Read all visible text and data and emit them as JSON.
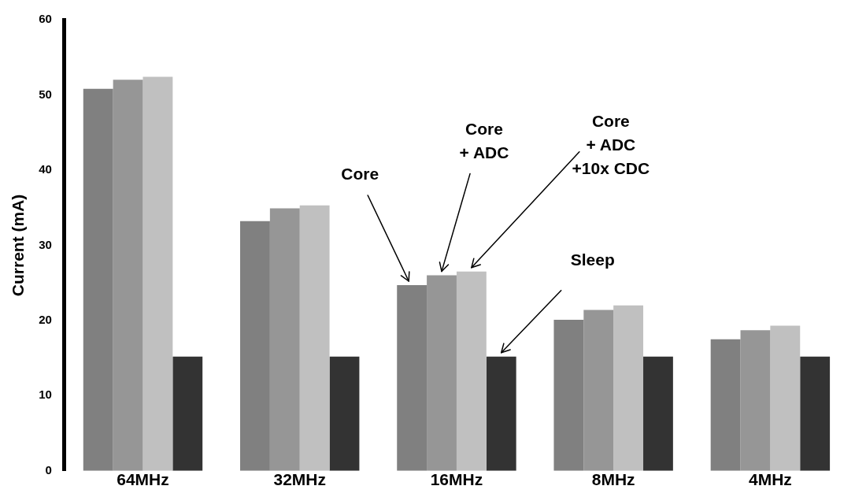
{
  "chart_data": {
    "type": "bar",
    "ylabel": "Current (mA)",
    "categories": [
      "64MHz",
      "32MHz",
      "16MHz",
      "8MHz",
      "4MHz"
    ],
    "series": [
      {
        "color": "#808080",
        "values": [
          50.8,
          33.2,
          24.7,
          20.1,
          17.5
        ]
      },
      {
        "color": "#969696",
        "values": [
          52.0,
          34.9,
          26.0,
          21.4,
          18.7
        ]
      },
      {
        "color": "#c0c0c0",
        "values": [
          52.4,
          35.3,
          26.5,
          22.0,
          19.3
        ]
      },
      {
        "color": "#333333",
        "values": [
          15.2,
          15.2,
          15.2,
          15.2,
          15.2
        ]
      }
    ],
    "ylim": [
      0,
      60
    ],
    "yticks": [
      0,
      10,
      20,
      30,
      40,
      50,
      60
    ],
    "grid": false,
    "legend": false,
    "annotations": [
      "Core",
      "Core\n+ ADC",
      "Core\n+ ADC\n+10x CDC",
      "Sleep"
    ]
  }
}
